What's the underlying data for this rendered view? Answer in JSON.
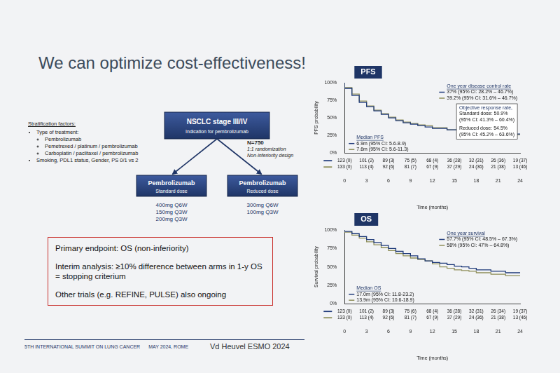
{
  "title": "We can optimize cost-effectiveness!",
  "stratification": {
    "heading": "Stratification factors:",
    "items": [
      {
        "text": "Type of treatment:",
        "sub": [
          "Pembrolizumab",
          "Pemetrexed / platinum / pembrolizumab",
          "Carboplatin / paclitaxel / pembrolizumab"
        ]
      },
      {
        "text": "Smoking, PDL1 status, Gender, PS 0/1 vs 2"
      }
    ]
  },
  "diagram": {
    "top": {
      "title": "NSCLC stage III/IV",
      "subtitle": "Indication for pembrolizumab"
    },
    "design": [
      "N=750",
      "1:1 randomization",
      "Non-inferiority design"
    ],
    "arms": [
      {
        "title": "Pembrolizumab",
        "subtitle": "Standard dose",
        "doses": [
          "400mg Q6W",
          "150mg Q3W",
          "200mg Q3W"
        ]
      },
      {
        "title": "Pembrolizumab",
        "subtitle": "Reduced dose",
        "doses": [
          "300mg Q6W",
          "100mg Q3W"
        ]
      }
    ]
  },
  "endpoints": [
    [
      "Primary endpoint: OS (non-inferiority)"
    ],
    [
      "Interim analysis: ≥10% difference between arms in 1-y OS",
      "= stopping criterium"
    ],
    [
      "Other trials (e.g. REFINE, PULSE) also ongoing"
    ]
  ],
  "footer": {
    "event": "5TH INTERNATIONAL SUMMIT ON LUNG CANCER",
    "date": "MAY 2024, ROME",
    "reference": "Vd Heuvel ESMO 2024"
  },
  "chart_data": [
    {
      "type": "line",
      "title": "PFS",
      "line_style": "steps",
      "grid": false,
      "x_label": "Time (months)",
      "y_label": "PFS probability",
      "xlim": [
        0,
        24
      ],
      "xticks": [
        0,
        3,
        6,
        9,
        12,
        15,
        18,
        21,
        24
      ],
      "ylim": [
        0,
        100
      ],
      "yticks": [
        {
          "value": 0,
          "label": "0%"
        },
        {
          "value": 25,
          "label": "25%"
        },
        {
          "value": 50,
          "label": "50%"
        },
        {
          "value": 75,
          "label": "75%"
        },
        {
          "value": 100,
          "label": "100%"
        }
      ],
      "x": [
        0,
        1,
        2,
        3,
        4,
        5,
        6,
        7,
        8,
        9,
        10,
        11,
        12,
        14,
        16,
        18,
        20,
        22,
        24
      ],
      "one_year_title": "One year disease control rate",
      "median_title": "Median PFS",
      "orr": {
        "title": "Objective response rate,",
        "groups": [
          [
            "Standard dose: 50.9%",
            "(95% CI: 41.3% – 60.4%)"
          ],
          [
            "Reduced dose: 54.5%",
            "(95% CI: 45.2% – 63.6%)"
          ]
        ]
      },
      "series": [
        {
          "color": "#1f3a7a",
          "values": [
            100,
            92,
            82,
            72,
            66,
            60,
            55,
            50,
            46,
            43,
            41,
            39,
            37,
            35,
            33,
            31,
            29,
            28,
            27
          ],
          "one_year": "37% (95% CI: 28.2% – 46.7%)",
          "median": "6.9m (95% CI: 5.6-8.9)",
          "at_risk": [
            "123 (0)",
            "101 (2)",
            "89 (3)",
            "75 (5)",
            "68 (4)",
            "36 (28)",
            "32 (31)",
            "26 (36)",
            "19 (37)"
          ]
        },
        {
          "color": "#8f8f5a",
          "values": [
            100,
            93,
            84,
            74,
            67,
            61,
            56,
            51,
            47,
            44,
            42,
            40,
            39,
            36,
            33,
            30,
            29,
            28,
            26
          ],
          "one_year": "39.2% (95% CI: 31.6% – 46.7%)",
          "median": "7.6m (95% CI: 5.6-11.3)",
          "at_risk": [
            "133 (0)",
            "113 (4)",
            "92 (6)",
            "81 (7)",
            "67 (9)",
            "37 (29)",
            "24 (36)",
            "21 (38)",
            "13 (46)"
          ]
        }
      ]
    },
    {
      "type": "line",
      "title": "OS",
      "line_style": "steps",
      "grid": false,
      "x_label": "Time (months)",
      "y_label": "Survival probability",
      "xlim": [
        0,
        24
      ],
      "xticks": [
        0,
        3,
        6,
        9,
        12,
        15,
        18,
        21,
        24
      ],
      "ylim": [
        0,
        100
      ],
      "yticks": [
        {
          "value": 0,
          "label": "0%"
        },
        {
          "value": 25,
          "label": "25%"
        },
        {
          "value": 50,
          "label": "50%"
        },
        {
          "value": 75,
          "label": "75%"
        },
        {
          "value": 100,
          "label": "100%"
        }
      ],
      "x": [
        0,
        1,
        2,
        3,
        4,
        5,
        6,
        7,
        8,
        9,
        10,
        11,
        12,
        13,
        14,
        15,
        16,
        17,
        18,
        20,
        22,
        24
      ],
      "one_year_title": "One year survival",
      "median_title": "Median OS",
      "series": [
        {
          "color": "#1f3a7a",
          "values": [
            100,
            98,
            95,
            91,
            87,
            83,
            79,
            75,
            71,
            68,
            65,
            61,
            58,
            56,
            55,
            53,
            51,
            50,
            48,
            46,
            44,
            42
          ],
          "one_year": "57.7% (95% CI: 48.5% – 67.3%)",
          "median": "17.0m (95% CI: 11.8-23.2)",
          "at_risk": [
            "123 (0)",
            "101 (2)",
            "89 (3)",
            "75 (6)",
            "68 (4)",
            "36 (28)",
            "32 (31)",
            "26 (34)",
            "19 (37)"
          ]
        },
        {
          "color": "#8f8f5a",
          "values": [
            100,
            97,
            93,
            89,
            84,
            80,
            76,
            72,
            68,
            65,
            62,
            60,
            58,
            54,
            50,
            48,
            46,
            45,
            44,
            42,
            40,
            38
          ],
          "one_year": "58% (95% CI: 47% – 64.8%)",
          "median": "13.9m (95% CI: 10.6-18.9)",
          "at_risk": [
            "133 (0)",
            "113 (4)",
            "92 (6)",
            "81 (7)",
            "67 (9)",
            "37 (29)",
            "24 (36)",
            "21 (38)",
            "13 (46)"
          ]
        }
      ]
    }
  ]
}
